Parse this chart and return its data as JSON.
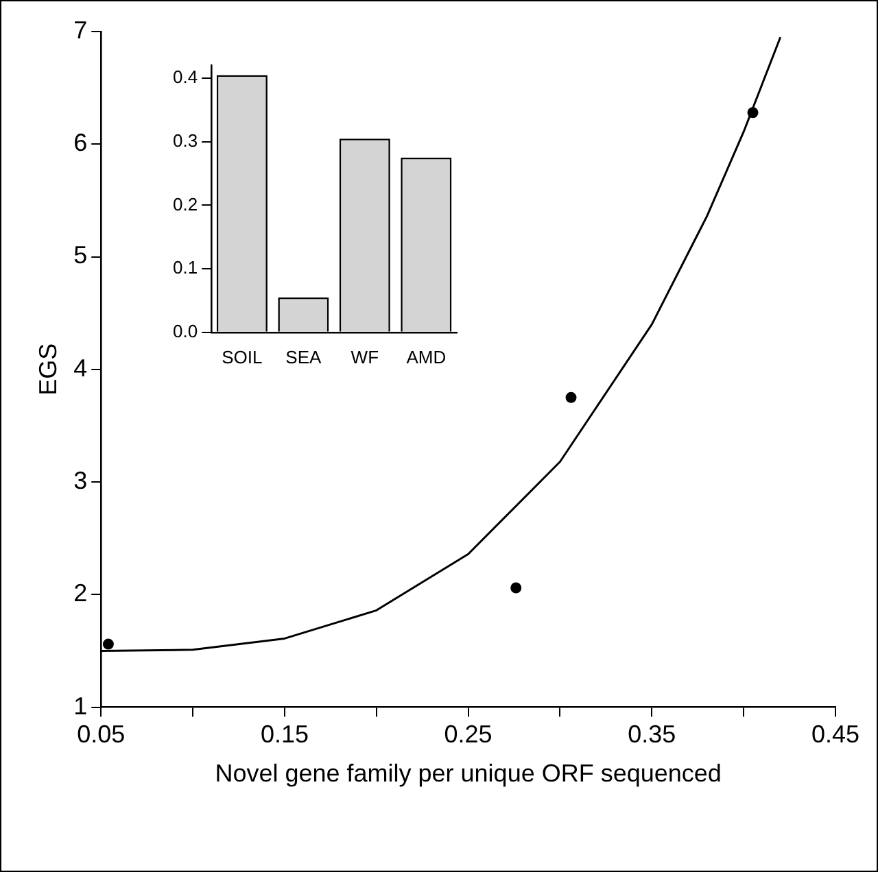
{
  "chart_data": [
    {
      "type": "scatter",
      "xlabel": "Novel gene family per unique ORF sequenced",
      "ylabel": "EGS",
      "xlim": [
        0.05,
        0.45
      ],
      "ylim": [
        1,
        7
      ],
      "xticks": [
        0.05,
        {
          "value": 0.1,
          "label": null
        },
        0.15,
        {
          "value": 0.2,
          "label": null
        },
        0.25,
        {
          "value": 0.3,
          "label": null
        },
        0.35,
        {
          "value": 0.4,
          "label": null
        },
        0.45
      ],
      "yticks": [
        1,
        2,
        3,
        4,
        5,
        6,
        7
      ],
      "grid": false,
      "legend": false,
      "marker": "circle",
      "series": [
        {
          "type": "scatter",
          "color": "#000000",
          "x": [
            0.054,
            0.276,
            0.306,
            0.405
          ],
          "values": [
            1.56,
            2.06,
            3.75,
            6.28
          ]
        },
        {
          "type": "line",
          "color": "#000000",
          "marker": "none",
          "line_style": "solid",
          "x": [
            0.05,
            0.1,
            0.15,
            0.2,
            0.25,
            0.3,
            0.35,
            0.38,
            0.4,
            0.42
          ],
          "values": [
            1.5,
            1.51,
            1.61,
            1.86,
            2.36,
            3.18,
            4.4,
            5.36,
            6.11,
            6.95
          ]
        }
      ]
    },
    {
      "type": "bar",
      "categories": [
        "SOIL",
        "SEA",
        "WF",
        "AMD"
      ],
      "values": [
        0.405,
        0.055,
        0.305,
        0.275
      ],
      "color": "#d4d4d4",
      "ylim": [
        0,
        0.42
      ],
      "yticks": [
        {
          "value": 0,
          "label": "0.0"
        },
        0.1,
        0.2,
        0.3,
        0.4
      ],
      "grid": false,
      "legend": false
    }
  ]
}
